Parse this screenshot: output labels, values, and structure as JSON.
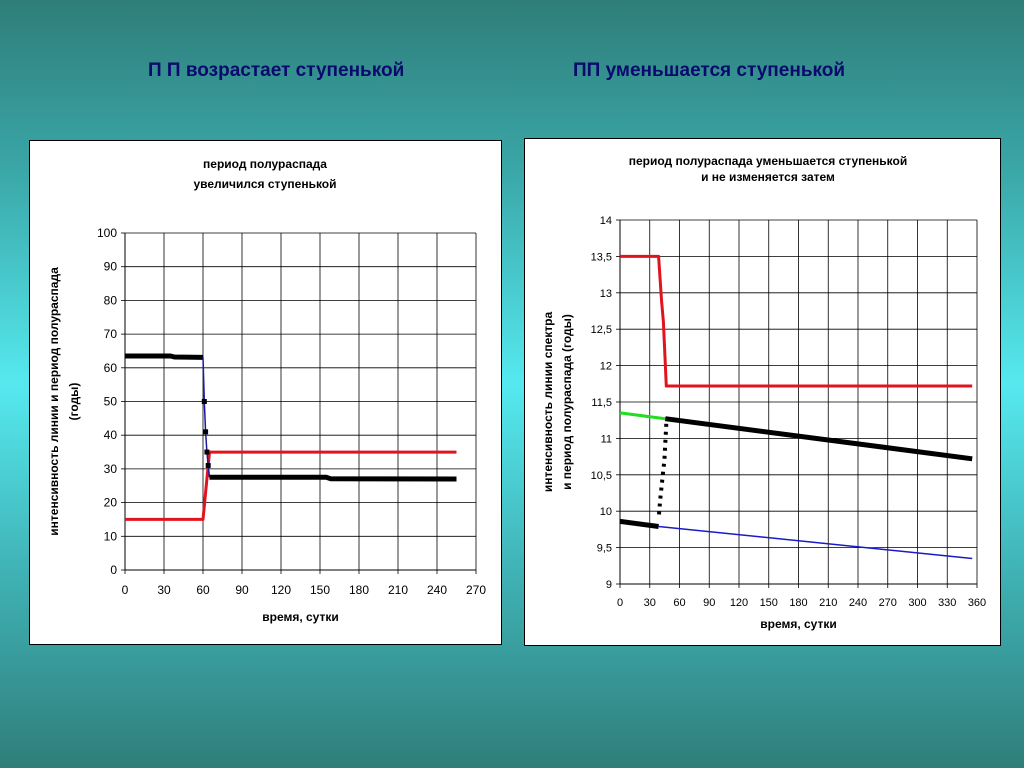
{
  "slide": {
    "title_left": "П П возрастает ступенькой",
    "title_right": "ПП уменьшается ступенькой"
  },
  "chart_data": [
    {
      "type": "line",
      "title_lines": [
        "период полураспада",
        "увеличился ступенькой"
      ],
      "xlabel": "время, сутки",
      "ylabel_lines": [
        "интенсивность линии и период полураспада",
        "(годы)"
      ],
      "xlim": [
        0,
        270
      ],
      "ylim": [
        0,
        100
      ],
      "xticks": [
        "0",
        "30",
        "60",
        "90",
        "120",
        "150",
        "180",
        "210",
        "240",
        "270"
      ],
      "yticks": [
        "0",
        "10",
        "20",
        "30",
        "40",
        "50",
        "60",
        "70",
        "80",
        "90",
        "100"
      ],
      "grid": true,
      "series": [
        {
          "color": "#e0141e",
          "style": "solid",
          "points": [
            [
              0,
              15
            ],
            [
              60,
              15
            ],
            [
              65,
              35
            ],
            [
              255,
              35
            ]
          ]
        },
        {
          "color": "#000000",
          "style": "solid-thick",
          "points": [
            [
              0,
              63.5
            ],
            [
              35,
              63.5
            ],
            [
              38,
              63.2
            ],
            [
              60,
              63.1
            ]
          ]
        },
        {
          "color": "#1a1a9e",
          "style": "solid-thin",
          "points": [
            [
              60,
              63.1
            ],
            [
              61,
              50
            ],
            [
              62,
              41
            ],
            [
              63,
              35
            ],
            [
              64,
              31
            ],
            [
              65,
              27.5
            ]
          ]
        },
        {
          "color": "#000000",
          "style": "markers",
          "points": [
            [
              61,
              50
            ],
            [
              62,
              41
            ],
            [
              63,
              35
            ],
            [
              64,
              31
            ]
          ]
        },
        {
          "color": "#000000",
          "style": "solid-thick",
          "points": [
            [
              65,
              27.5
            ],
            [
              155,
              27.5
            ],
            [
              158,
              27.1
            ],
            [
              255,
              27
            ]
          ]
        }
      ]
    },
    {
      "type": "line",
      "title_lines": [
        "период полураспада уменьшается ступенькой",
        "и не изменяется затем"
      ],
      "xlabel": "время, сутки",
      "ylabel_lines": [
        "интенсивность линии спектра",
        "и период полураспада (годы)"
      ],
      "xlim": [
        0,
        370
      ],
      "ylim": [
        9,
        14
      ],
      "xticks": [
        "0",
        "30",
        "60",
        "90",
        "120",
        "150",
        "180",
        "210",
        "240",
        "270",
        "300",
        "330",
        "360"
      ],
      "yticks": [
        "9",
        "9,5",
        "10",
        "10,5",
        "11",
        "11,5",
        "12",
        "12,5",
        "13",
        "13,5",
        "14"
      ],
      "grid": true,
      "series": [
        {
          "color": "#e0141e",
          "style": "solid",
          "points": [
            [
              0,
              13.5
            ],
            [
              40,
              13.5
            ],
            [
              43,
              12.9
            ],
            [
              45,
              12.6
            ],
            [
              48,
              11.72
            ],
            [
              365,
              11.72
            ]
          ]
        },
        {
          "color": "#22dd22",
          "style": "solid",
          "points": [
            [
              0,
              11.35
            ],
            [
              47,
              11.27
            ]
          ]
        },
        {
          "color": "#000000",
          "style": "solid-thick",
          "points": [
            [
              47,
              11.27
            ],
            [
              365,
              10.72
            ]
          ]
        },
        {
          "color": "#000000",
          "style": "dotted",
          "points": [
            [
              48,
              11.2
            ],
            [
              46,
              10.7
            ],
            [
              42,
              10.2
            ],
            [
              40,
              9.9
            ]
          ]
        },
        {
          "color": "#000000",
          "style": "solid-thick",
          "points": [
            [
              0,
              9.86
            ],
            [
              40,
              9.79
            ]
          ]
        },
        {
          "color": "#1a1ac8",
          "style": "solid-thin",
          "points": [
            [
              40,
              9.79
            ],
            [
              365,
              9.35
            ]
          ]
        }
      ]
    }
  ]
}
